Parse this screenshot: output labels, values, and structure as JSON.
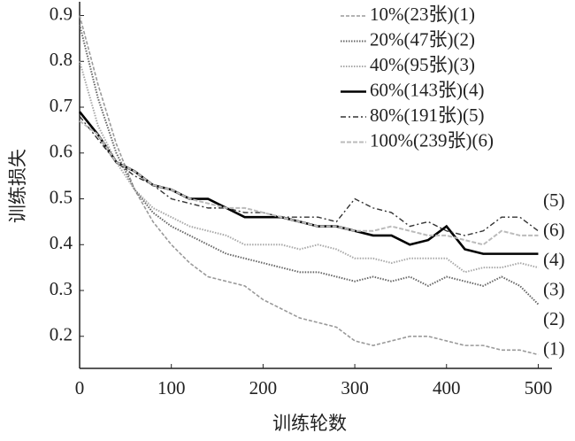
{
  "chart_data": {
    "type": "line",
    "x_label": "训练轮数",
    "y_label": "训练损失",
    "x": [
      0,
      20,
      40,
      60,
      80,
      100,
      120,
      140,
      160,
      180,
      200,
      220,
      240,
      260,
      280,
      300,
      320,
      340,
      360,
      380,
      400,
      420,
      440,
      460,
      480,
      500
    ],
    "xlim": [
      0,
      515
    ],
    "ylim": [
      0.13,
      0.93
    ],
    "xticks": [
      0,
      100,
      200,
      300,
      400,
      500
    ],
    "yticks": [
      0.2,
      0.3,
      0.4,
      0.5,
      0.6,
      0.7,
      0.8,
      0.9
    ],
    "series": [
      {
        "name": "10%(23张)(1)",
        "color": "#9a9a9a",
        "dash": "4 2",
        "width": 1.6,
        "values": [
          0.9,
          0.75,
          0.62,
          0.52,
          0.45,
          0.4,
          0.36,
          0.33,
          0.32,
          0.31,
          0.28,
          0.26,
          0.24,
          0.23,
          0.22,
          0.19,
          0.18,
          0.19,
          0.2,
          0.2,
          0.19,
          0.18,
          0.18,
          0.17,
          0.17,
          0.16
        ]
      },
      {
        "name": "20%(47张)(2)",
        "color": "#666666",
        "dash": "1.5 1.5",
        "width": 2,
        "values": [
          0.88,
          0.72,
          0.6,
          0.52,
          0.47,
          0.44,
          0.42,
          0.4,
          0.38,
          0.37,
          0.36,
          0.35,
          0.34,
          0.34,
          0.33,
          0.32,
          0.33,
          0.32,
          0.33,
          0.31,
          0.33,
          0.32,
          0.31,
          0.33,
          0.31,
          0.27
        ]
      },
      {
        "name": "40%(95张)(3)",
        "color": "#a8a8a8",
        "dash": "1.5 1.5",
        "width": 2,
        "values": [
          0.8,
          0.66,
          0.58,
          0.52,
          0.48,
          0.46,
          0.44,
          0.43,
          0.42,
          0.4,
          0.4,
          0.4,
          0.39,
          0.4,
          0.39,
          0.37,
          0.37,
          0.36,
          0.37,
          0.37,
          0.37,
          0.34,
          0.35,
          0.35,
          0.36,
          0.35
        ]
      },
      {
        "name": "60%(143张)(4)",
        "color": "#000000",
        "dash": "none",
        "width": 2.6,
        "values": [
          0.69,
          0.64,
          0.58,
          0.56,
          0.53,
          0.52,
          0.5,
          0.5,
          0.48,
          0.46,
          0.46,
          0.46,
          0.45,
          0.44,
          0.44,
          0.43,
          0.42,
          0.42,
          0.4,
          0.41,
          0.44,
          0.39,
          0.38,
          0.38,
          0.38,
          0.38
        ]
      },
      {
        "name": "80%(191张)(5)",
        "color": "#333333",
        "dash": "6 3 2 3",
        "width": 1.4,
        "values": [
          0.68,
          0.63,
          0.58,
          0.55,
          0.53,
          0.5,
          0.49,
          0.48,
          0.48,
          0.47,
          0.47,
          0.46,
          0.46,
          0.46,
          0.45,
          0.5,
          0.48,
          0.47,
          0.44,
          0.45,
          0.43,
          0.42,
          0.43,
          0.46,
          0.46,
          0.43
        ]
      },
      {
        "name": "100%(239张)(6)",
        "color": "#bbbbbb",
        "dash": "5 2",
        "width": 2,
        "values": [
          0.67,
          0.64,
          0.58,
          0.56,
          0.53,
          0.52,
          0.5,
          0.49,
          0.48,
          0.48,
          0.47,
          0.46,
          0.45,
          0.44,
          0.44,
          0.43,
          0.43,
          0.44,
          0.43,
          0.42,
          0.42,
          0.41,
          0.4,
          0.43,
          0.42,
          0.42
        ]
      }
    ],
    "annotations": [
      "(5)",
      "(6)",
      "(4)",
      "(3)",
      "(2)",
      "(1)"
    ]
  }
}
